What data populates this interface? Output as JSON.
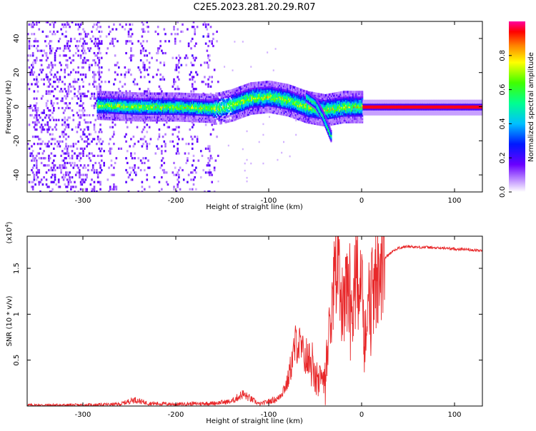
{
  "title": "C2E5.2023.281.20.29.R07",
  "chart_data": [
    {
      "type": "heatmap",
      "xlabel": "Height of straight line (km)",
      "ylabel": "Frequency (Hz)",
      "xlim": [
        -360,
        130
      ],
      "ylim": [
        -50,
        50
      ],
      "xticks": [
        -300,
        -200,
        -100,
        0,
        100
      ],
      "yticks": [
        -40,
        -20,
        0,
        20,
        40
      ],
      "colorbar": {
        "label": "Normalized spectral amplitude",
        "range": [
          0.0,
          1.0
        ],
        "ticks": [
          0.0,
          0.2,
          0.4,
          0.6,
          0.8
        ]
      },
      "features": {
        "noise_region_km": [
          -360,
          -155
        ],
        "dense_noise_km": [
          -360,
          -280
        ],
        "band_center_hz": [
          {
            "x": -285,
            "y": 1
          },
          {
            "x": -240,
            "y": 0
          },
          {
            "x": -200,
            "y": 0
          },
          {
            "x": -155,
            "y": -1
          },
          {
            "x": -140,
            "y": 1
          },
          {
            "x": -120,
            "y": 5
          },
          {
            "x": -100,
            "y": 6
          },
          {
            "x": -80,
            "y": 4
          },
          {
            "x": -60,
            "y": 0
          },
          {
            "x": -40,
            "y": -2
          },
          {
            "x": -20,
            "y": 0
          },
          {
            "x": 0,
            "y": 0
          },
          {
            "x": 130,
            "y": 0
          }
        ],
        "branch_hz": [
          {
            "x": -60,
            "y": 6
          },
          {
            "x": -50,
            "y": 2
          },
          {
            "x": -42,
            "y": -6
          },
          {
            "x": -33,
            "y": -18
          }
        ]
      }
    },
    {
      "type": "line",
      "xlabel": "Height of straight line (km)",
      "ylabel": "SNR (10 * v/v)",
      "y_scale_label": "(x10^4)",
      "xlim": [
        -360,
        130
      ],
      "ylim": [
        0,
        1.85
      ],
      "xticks": [
        -300,
        -200,
        -100,
        0,
        100
      ],
      "yticks": [
        0.5,
        1.0,
        1.5
      ],
      "series": [
        {
          "color": "#e8282a",
          "x": [
            -360,
            -300,
            -260,
            -245,
            -230,
            -200,
            -160,
            -140,
            -128,
            -110,
            -90,
            -80,
            -70,
            -62,
            -55,
            -48,
            -40,
            -34,
            -30,
            -26,
            -22,
            -18,
            -14,
            -10,
            -6,
            -2,
            0,
            4,
            8,
            14,
            20,
            26,
            32,
            40,
            50,
            60,
            70,
            80,
            90,
            100,
            110,
            120,
            130
          ],
          "y": [
            0.01,
            0.01,
            0.02,
            0.07,
            0.03,
            0.02,
            0.03,
            0.05,
            0.13,
            0.02,
            0.08,
            0.25,
            0.72,
            0.55,
            0.45,
            0.22,
            0.35,
            0.95,
            1.45,
            1.58,
            1.1,
            1.25,
            1.4,
            1.05,
            1.55,
            1.25,
            1.45,
            0.75,
            1.15,
            1.35,
            1.52,
            1.62,
            1.68,
            1.72,
            1.74,
            1.73,
            1.73,
            1.72,
            1.72,
            1.71,
            1.71,
            1.7,
            1.69
          ]
        }
      ]
    }
  ]
}
